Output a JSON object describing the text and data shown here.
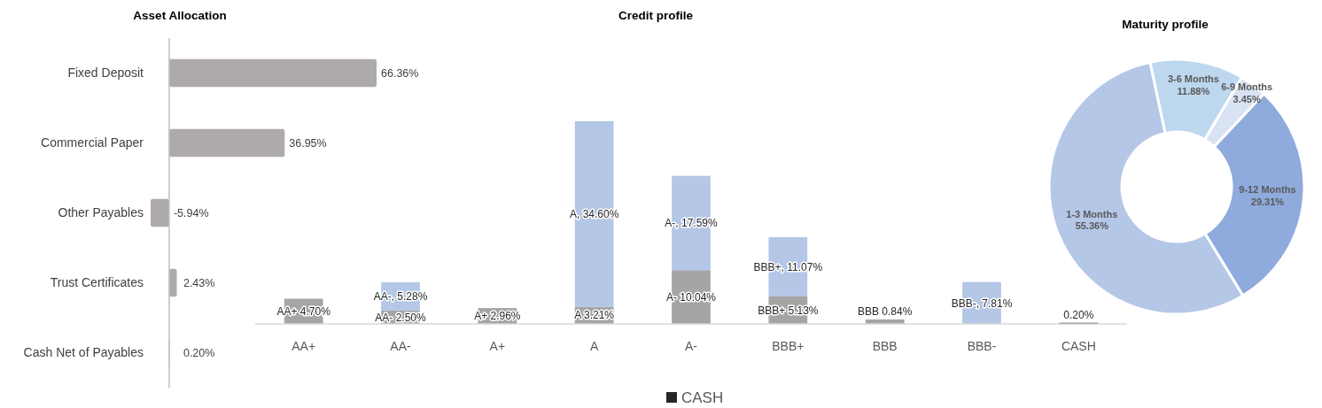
{
  "chart_data": [
    {
      "type": "bar",
      "orientation": "horizontal",
      "title": "Asset Allocation",
      "categories": [
        "Fixed Deposit",
        "Commercial Paper",
        "Other Payables",
        "Trust Certificates",
        "Cash Net of Payables"
      ],
      "values": [
        66.36,
        36.95,
        -5.94,
        2.43,
        0.2
      ],
      "value_labels": [
        "66.36%",
        "36.95%",
        "-5.94%",
        "2.43%",
        "0.20%"
      ],
      "color": "#aeaaaa"
    },
    {
      "type": "bar",
      "stacked": true,
      "title": "Credit profile",
      "categories": [
        "AA+",
        "AA-",
        "A+",
        "A",
        "A-",
        "BBB+",
        "BBB",
        "BBB-",
        "CASH"
      ],
      "series": [
        {
          "color": "#a5a5a5",
          "values": [
            4.7,
            2.5,
            2.96,
            3.21,
            10.04,
            5.13,
            0.84,
            null,
            null
          ],
          "value_labels": [
            "AA+ 4.70%",
            "AA- 2.50%",
            "A+ 2.96%",
            "A 3.21%",
            "A- 10.04%",
            "BBB+ 5.13%",
            "BBB 0.84%",
            null,
            null
          ]
        },
        {
          "color": "#b4c7e7",
          "values": [
            null,
            5.28,
            null,
            34.6,
            17.59,
            11.07,
            null,
            7.81,
            null
          ],
          "value_labels": [
            null,
            "AA-, 5.28%",
            null,
            "A, 34.60%",
            "A-, 17.59%",
            "BBB+, 11.07%",
            null,
            "BBB-, 7.81%",
            null
          ]
        },
        {
          "name": "CASH",
          "color": "#262626",
          "values": [
            null,
            null,
            null,
            null,
            null,
            null,
            null,
            null,
            0.2
          ],
          "value_labels": [
            null,
            null,
            null,
            null,
            null,
            null,
            null,
            null,
            "0.20%"
          ]
        }
      ],
      "legend": "bottom"
    },
    {
      "type": "donut",
      "title": "Maturity profile",
      "categories": [
        "1-3 Months",
        "3-6 Months",
        "6-9 Months",
        "9-12 Months"
      ],
      "values": [
        55.36,
        11.88,
        3.45,
        29.31
      ],
      "value_labels": [
        "55.36%",
        "11.88%",
        "3.45%",
        "29.31%"
      ],
      "colors": [
        "#b4c7e7",
        "#bdd7ee",
        "#dae3f3",
        "#8faadc"
      ]
    }
  ]
}
